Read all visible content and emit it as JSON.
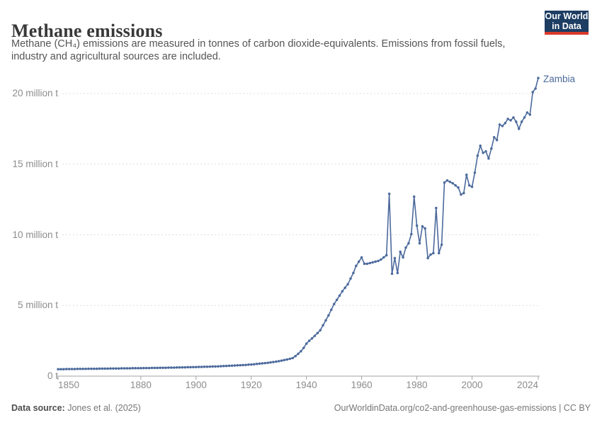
{
  "header": {
    "title": "Methane emissions",
    "subtitle_line1": "Methane (CH₄) emissions are measured in tonnes of carbon dioxide-equivalents. Emissions from fossil fuels,",
    "subtitle_line2": "industry and agricultural sources are included.",
    "logo": {
      "line1": "Our World",
      "line2": "in Data"
    }
  },
  "colors": {
    "series": "#4C6A9C",
    "grid": "#dedede",
    "axis": "#a3a3a3",
    "tick_text": "#8c8c8c",
    "logo_bg": "#1d3d63",
    "logo_accent": "#d93a2b"
  },
  "footer": {
    "source_label": "Data source:",
    "source_value": "Jones et al. (2025)",
    "credit": "OurWorldinData.org/co2-and-greenhouse-gas-emissions | CC BY"
  },
  "chart_data": {
    "type": "line",
    "title": "Methane emissions",
    "unit": "tonnes of CO2-equivalents",
    "xlabel": "",
    "ylabel": "",
    "xlim": [
      1850,
      2024
    ],
    "ylim": [
      0,
      21.5
    ],
    "grid": "horizontal-dashed",
    "legend": "end-of-line-label",
    "xticks": [
      1850,
      1880,
      1900,
      1920,
      1940,
      1960,
      1980,
      2000,
      2024
    ],
    "yticks": [
      {
        "v": 0,
        "label": "0 t"
      },
      {
        "v": 5,
        "label": "5 million t"
      },
      {
        "v": 10,
        "label": "10 million t"
      },
      {
        "v": 15,
        "label": "15 million t"
      },
      {
        "v": 20,
        "label": "20 million t"
      }
    ],
    "series": [
      {
        "name": "Zambia",
        "color": "#4C6A9C",
        "start_year": 1850,
        "values_unit": "million t",
        "values": [
          0.49,
          0.49,
          0.49,
          0.5,
          0.5,
          0.5,
          0.5,
          0.51,
          0.51,
          0.51,
          0.51,
          0.52,
          0.52,
          0.52,
          0.52,
          0.53,
          0.53,
          0.53,
          0.53,
          0.54,
          0.54,
          0.54,
          0.54,
          0.55,
          0.55,
          0.55,
          0.55,
          0.56,
          0.56,
          0.56,
          0.56,
          0.57,
          0.57,
          0.57,
          0.58,
          0.58,
          0.58,
          0.59,
          0.59,
          0.59,
          0.6,
          0.6,
          0.6,
          0.61,
          0.61,
          0.62,
          0.62,
          0.63,
          0.63,
          0.64,
          0.64,
          0.65,
          0.65,
          0.66,
          0.66,
          0.67,
          0.68,
          0.68,
          0.69,
          0.7,
          0.71,
          0.72,
          0.73,
          0.74,
          0.75,
          0.76,
          0.77,
          0.78,
          0.79,
          0.81,
          0.82,
          0.84,
          0.86,
          0.88,
          0.9,
          0.92,
          0.94,
          0.97,
          1.0,
          1.03,
          1.06,
          1.1,
          1.14,
          1.18,
          1.23,
          1.28,
          1.42,
          1.58,
          1.76,
          2.0,
          2.3,
          2.5,
          2.67,
          2.85,
          3.05,
          3.25,
          3.6,
          3.95,
          4.3,
          4.7,
          5.1,
          5.4,
          5.7,
          6.0,
          6.25,
          6.5,
          6.9,
          7.3,
          7.8,
          8.1,
          8.4,
          7.95,
          7.95,
          8.0,
          8.05,
          8.1,
          8.15,
          8.25,
          8.4,
          8.55,
          12.9,
          7.25,
          8.35,
          7.3,
          8.8,
          8.4,
          9.1,
          9.4,
          10.05,
          12.7,
          10.65,
          9.4,
          10.6,
          10.45,
          8.35,
          8.6,
          8.7,
          11.9,
          8.7,
          9.3,
          13.7,
          13.85,
          13.75,
          13.65,
          13.5,
          13.35,
          12.85,
          12.95,
          14.25,
          13.5,
          13.4,
          14.4,
          15.6,
          16.3,
          15.8,
          15.9,
          15.4,
          16.1,
          16.9,
          16.7,
          17.8,
          17.7,
          17.9,
          18.2,
          18.1,
          18.3,
          18.0,
          17.5,
          18.0,
          18.3,
          18.65,
          18.5,
          20.1,
          20.35,
          21.1
        ]
      }
    ]
  }
}
